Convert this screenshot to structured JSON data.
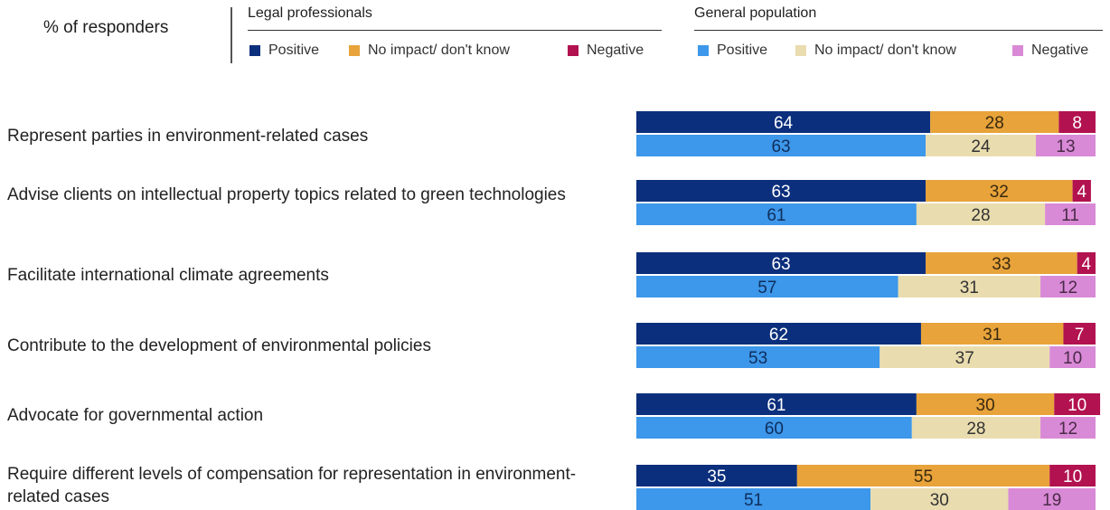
{
  "header": {
    "responders_label": "% of responders",
    "groups": [
      {
        "title": "Legal professionals",
        "legend": [
          {
            "label": "Positive",
            "color": "#0b2f7c"
          },
          {
            "label": "No impact/ don't know",
            "color": "#e8a33a"
          },
          {
            "label": "Negative",
            "color": "#b2124f"
          }
        ]
      },
      {
        "title": "General population",
        "legend": [
          {
            "label": "Positive",
            "color": "#3d97ea"
          },
          {
            "label": "No impact/ don't know",
            "color": "#e9dcaf"
          },
          {
            "label": "Negative",
            "color": "#d98ad6"
          }
        ]
      }
    ]
  },
  "chart_data": {
    "type": "bar",
    "orientation": "horizontal",
    "stacked": true,
    "title": "% of responders",
    "categories": [
      "Represent parties in environment-related cases",
      "Advise clients on intellectual property topics related to green technologies",
      "Facilitate international climate agreements",
      "Contribute to the development of environmental policies",
      "Advocate for governmental action",
      "Require different levels of compensation for representation in environment-related cases"
    ],
    "groups": [
      {
        "name": "Legal professionals",
        "series": [
          {
            "name": "Positive",
            "color": "#0b2f7c",
            "label_color": "#ffffff",
            "values": [
              64,
              63,
              63,
              62,
              61,
              35
            ]
          },
          {
            "name": "No impact/ don't know",
            "color": "#e8a33a",
            "label_color": "#3a2a10",
            "values": [
              28,
              32,
              33,
              31,
              30,
              55
            ]
          },
          {
            "name": "Negative",
            "color": "#b2124f",
            "label_color": "#ffffff",
            "values": [
              8,
              4,
              4,
              7,
              10,
              10
            ]
          }
        ]
      },
      {
        "name": "General population",
        "series": [
          {
            "name": "Positive",
            "color": "#3d97ea",
            "label_color": "#0e2e5c",
            "values": [
              63,
              61,
              57,
              53,
              60,
              51
            ]
          },
          {
            "name": "No impact/ don't know",
            "color": "#e9dcaf",
            "label_color": "#333333",
            "values": [
              24,
              28,
              31,
              37,
              28,
              30
            ]
          },
          {
            "name": "Negative",
            "color": "#d98ad6",
            "label_color": "#4a2a48",
            "values": [
              13,
              11,
              12,
              10,
              12,
              19
            ]
          }
        ]
      }
    ],
    "xlim": [
      0,
      100
    ],
    "grid": false,
    "legend_position": "top"
  }
}
